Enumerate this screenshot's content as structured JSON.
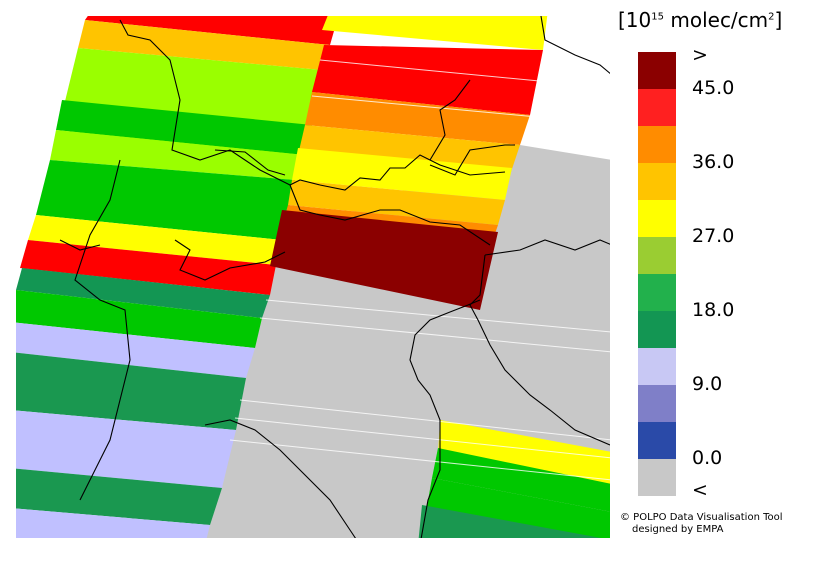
{
  "legend": {
    "title_prefix": "[10",
    "title_exponent": "15",
    "title_suffix": " molec/cm",
    "title_exponent2": "2",
    "title_close": "]",
    "swatches": [
      {
        "color": "#8b0000"
      },
      {
        "color": "#ff2020"
      },
      {
        "color": "#ff8c00"
      },
      {
        "color": "#ffc400"
      },
      {
        "color": "#ffff00"
      },
      {
        "color": "#9acd32"
      },
      {
        "color": "#22b14c"
      },
      {
        "color": "#139653"
      },
      {
        "color": "#c8c8f4"
      },
      {
        "color": "#7f7fc8"
      },
      {
        "color": "#2a4aa8"
      },
      {
        "color": "#c8c8c8"
      }
    ],
    "labels": [
      ">",
      "45.0",
      "36.0",
      "27.0",
      "18.0",
      "9.0",
      "0.0",
      "<"
    ]
  },
  "credit": {
    "line1": "© POLPO Data Visualisation Tool",
    "line2": "designed by EMPA"
  },
  "colors": {
    "dark_red": "#8b0000",
    "red": "#ff0000",
    "orange": "#ff8c00",
    "amber": "#ffc400",
    "yellow": "#ffff00",
    "yellow_green": "#9aff00",
    "green": "#00c800",
    "dark_green": "#1a9850",
    "lavender": "#c0c0ff",
    "gray": "#c8c8c8",
    "coastline": "#000000"
  }
}
